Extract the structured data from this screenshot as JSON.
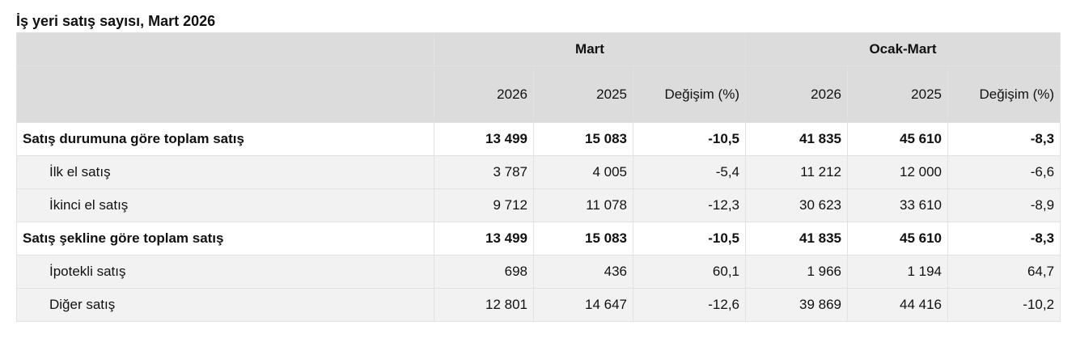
{
  "title": "İş yeri satış sayısı, Mart 2026",
  "table": {
    "group_headers": [
      "Mart",
      "Ocak-Mart"
    ],
    "column_headers": [
      "2026",
      "2025",
      "Değişim (%)",
      "2026",
      "2025",
      "Değişim (%)"
    ],
    "rows": [
      {
        "label": "Satış durumuna göre toplam satış",
        "kind": "total",
        "values": [
          "13 499",
          "15 083",
          "-10,5",
          "41 835",
          "45 610",
          "-8,3"
        ]
      },
      {
        "label": "İlk el satış",
        "kind": "sub",
        "values": [
          "3 787",
          "4 005",
          "-5,4",
          "11 212",
          "12 000",
          "-6,6"
        ]
      },
      {
        "label": "İkinci el satış",
        "kind": "sub",
        "values": [
          "9 712",
          "11 078",
          "-12,3",
          "30 623",
          "33 610",
          "-8,9"
        ]
      },
      {
        "label": "Satış şekline göre toplam satış",
        "kind": "total",
        "values": [
          "13 499",
          "15 083",
          "-10,5",
          "41 835",
          "45 610",
          "-8,3"
        ]
      },
      {
        "label": "İpotekli satış",
        "kind": "sub",
        "values": [
          "698",
          "436",
          "60,1",
          "1 966",
          "1 194",
          "64,7"
        ]
      },
      {
        "label": "Diğer satış",
        "kind": "sub",
        "values": [
          "12 801",
          "14 647",
          "-12,6",
          "39 869",
          "44 416",
          "-10,2"
        ]
      }
    ]
  }
}
